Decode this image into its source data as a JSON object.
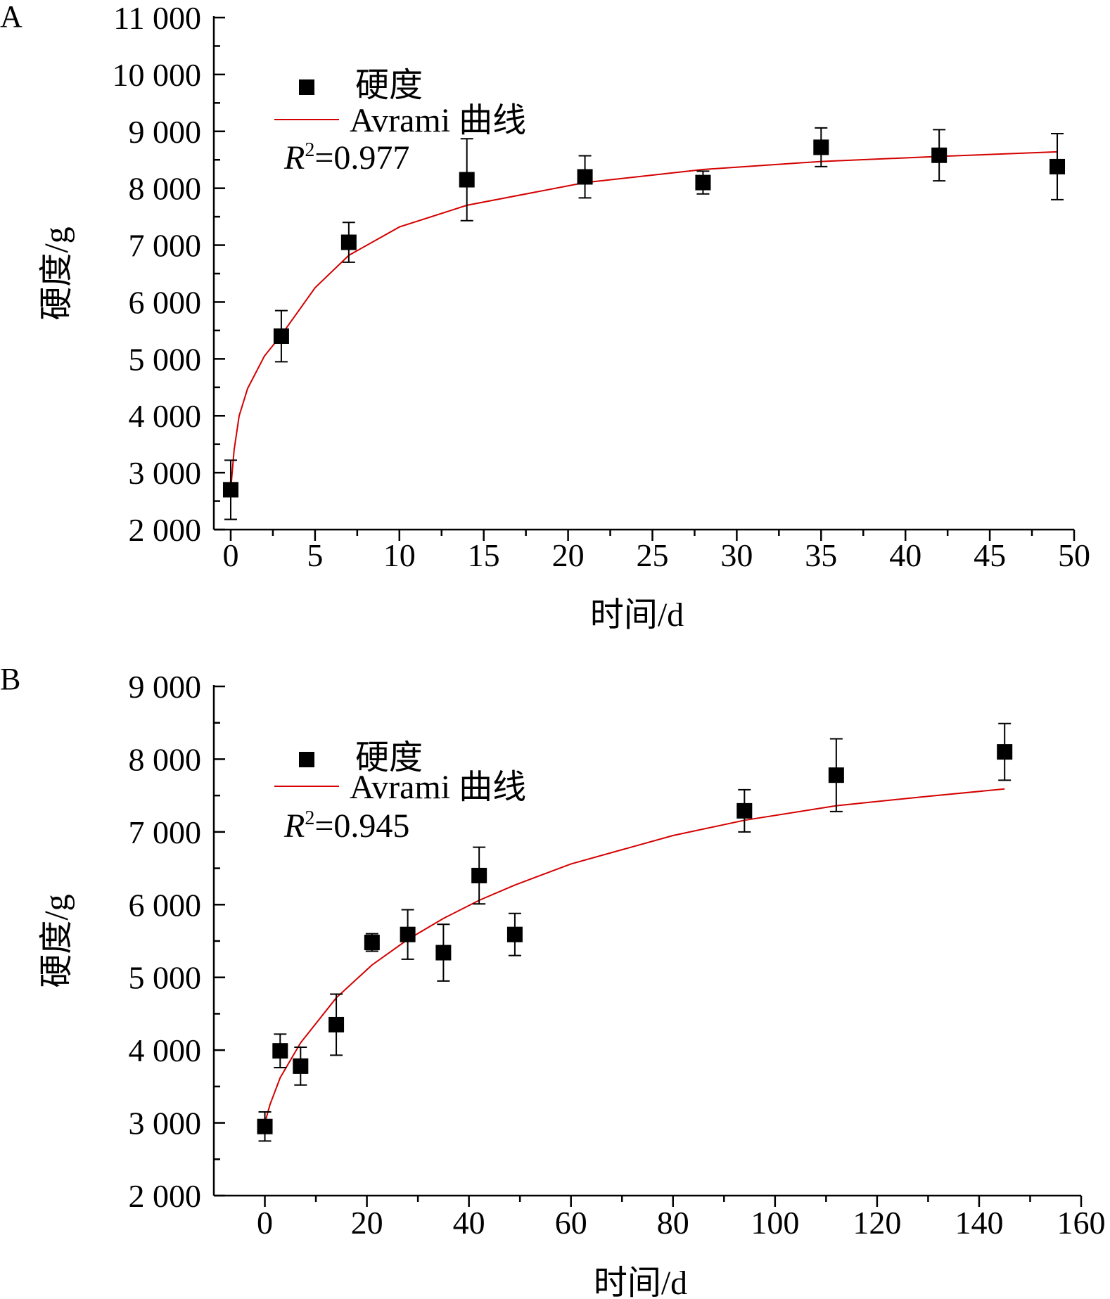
{
  "chart_data": [
    {
      "panel_label": "A",
      "type": "scatter",
      "xlabel": "时间/d",
      "ylabel": "硬度/g",
      "xlim": [
        -1,
        50
      ],
      "ylim": [
        2000,
        11000
      ],
      "xticks": [
        0,
        5,
        10,
        15,
        20,
        25,
        30,
        35,
        40,
        45,
        50
      ],
      "xtick_labels": [
        "0",
        "5",
        "10",
        "15",
        "20",
        "25",
        "30",
        "35",
        "40",
        "45",
        "50"
      ],
      "yticks": [
        2000,
        3000,
        4000,
        5000,
        6000,
        7000,
        8000,
        9000,
        10000,
        11000
      ],
      "ytick_labels": [
        "2 000",
        "3 000",
        "4 000",
        "5 000",
        "6 000",
        "7 000",
        "8 000",
        "9 000",
        "10 000",
        "11 000"
      ],
      "series": [
        {
          "name": "硬度",
          "marker": "square",
          "color": "#000000",
          "x": [
            0,
            3,
            7,
            14,
            21,
            28,
            35,
            42,
            49
          ],
          "y": [
            2700,
            5400,
            7050,
            8150,
            8200,
            8100,
            8720,
            8580,
            8380
          ],
          "err": [
            520,
            450,
            350,
            720,
            370,
            200,
            340,
            450,
            580
          ]
        },
        {
          "name": "Avrami 曲线",
          "type": "line",
          "color": "#d40000",
          "x": [
            0,
            0.2,
            0.5,
            1,
            2,
            3,
            5,
            7,
            10,
            14,
            21,
            28,
            35,
            42,
            49
          ],
          "y": [
            2700,
            3400,
            4000,
            4480,
            5050,
            5420,
            6250,
            6820,
            7320,
            7700,
            8100,
            8330,
            8470,
            8560,
            8640
          ]
        }
      ],
      "annotation": {
        "r2_label": "R",
        "r2_value": "=0.977"
      }
    },
    {
      "panel_label": "B",
      "type": "scatter",
      "xlabel": "时间/d",
      "ylabel": "硬度/g",
      "xlim": [
        -10,
        160
      ],
      "ylim": [
        2000,
        9000
      ],
      "xticks": [
        0,
        20,
        40,
        60,
        80,
        100,
        120,
        140,
        160
      ],
      "xtick_labels": [
        "0",
        "20",
        "40",
        "60",
        "80",
        "100",
        "120",
        "140",
        "160"
      ],
      "yticks": [
        2000,
        3000,
        4000,
        5000,
        6000,
        7000,
        8000,
        9000
      ],
      "ytick_labels": [
        "2 000",
        "3 000",
        "4 000",
        "5 000",
        "6 000",
        "7 000",
        "8 000",
        "9 000"
      ],
      "series": [
        {
          "name": "硬度",
          "marker": "square",
          "color": "#000000",
          "x": [
            0,
            3,
            7,
            14,
            21,
            28,
            35,
            42,
            49,
            94,
            112,
            145
          ],
          "y": [
            2950,
            3990,
            3780,
            4350,
            5480,
            5590,
            5340,
            6400,
            5590,
            7290,
            7780,
            8100
          ],
          "err": [
            200,
            230,
            260,
            420,
            120,
            340,
            390,
            390,
            290,
            290,
            500,
            390
          ]
        },
        {
          "name": "Avrami 曲线",
          "type": "line",
          "color": "#d40000",
          "x": [
            0,
            1,
            3,
            7,
            14,
            21,
            28,
            35,
            42,
            49,
            60,
            80,
            94,
            112,
            130,
            145
          ],
          "y": [
            3000,
            3250,
            3620,
            4100,
            4720,
            5170,
            5520,
            5810,
            6060,
            6270,
            6560,
            6950,
            7160,
            7360,
            7490,
            7590
          ]
        }
      ],
      "annotation": {
        "r2_label": "R",
        "r2_value": "=0.945"
      }
    }
  ]
}
